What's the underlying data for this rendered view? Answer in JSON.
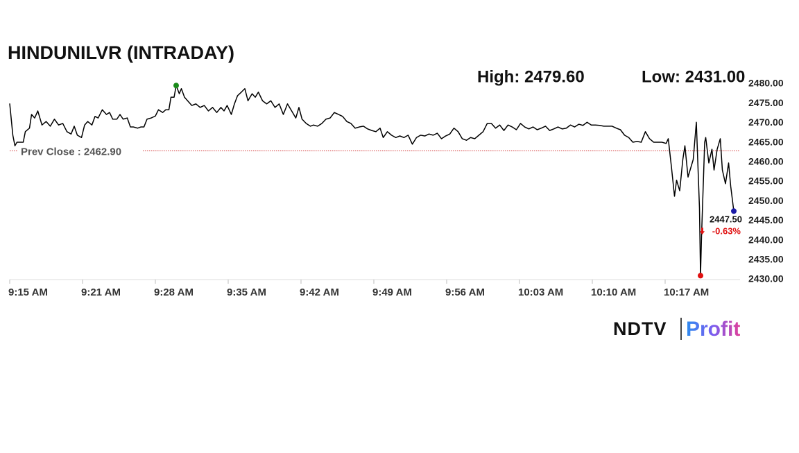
{
  "chart_data": {
    "type": "line",
    "title": "HINDUNILVR (INTRADAY)",
    "x": [
      15.0,
      15.3,
      15.5,
      15.7,
      16.3,
      16.5,
      16.9,
      17.1,
      17.4,
      17.7,
      18.1,
      18.5,
      18.9,
      19.3,
      19.7,
      20.1,
      20.5,
      20.9,
      21.2,
      21.5,
      21.9,
      22.2,
      22.5,
      22.9,
      23.2,
      23.5,
      23.9,
      24.3,
      24.6,
      24.9,
      25.3,
      25.6,
      25.9,
      26.3,
      26.6,
      26.9,
      27.3,
      27.6,
      27.9,
      28.2,
      28.6,
      29.0,
      29.3,
      29.7,
      30.0,
      30.3,
      30.5,
      30.8,
      31.0,
      31.3,
      31.5,
      31.8,
      32.1,
      32.5,
      32.9,
      33.3,
      33.7,
      34.1,
      34.5,
      34.9,
      35.3,
      35.6,
      35.9,
      36.3,
      36.6,
      36.9,
      37.3,
      37.6,
      37.9,
      38.3,
      38.6,
      38.9,
      39.3,
      39.7,
      40.1,
      40.5,
      40.9,
      41.3,
      41.7,
      42.1,
      42.5,
      42.8,
      43.1,
      43.5,
      43.9,
      44.2,
      44.6,
      45.0,
      45.4,
      45.8,
      46.2,
      46.6,
      47.0,
      47.4,
      47.8,
      48.2,
      48.6,
      49.0,
      49.4,
      49.8,
      50.2,
      50.6,
      50.9,
      51.3,
      51.7,
      52.1,
      52.5,
      52.9,
      53.3,
      53.7,
      54.1,
      54.5,
      54.9,
      55.3,
      55.7,
      56.1,
      56.5,
      56.9,
      57.3,
      57.7,
      58.1,
      58.5,
      58.9,
      59.3,
      59.7,
      60.1,
      60.5,
      60.9,
      61.3,
      61.7,
      62.1,
      62.5,
      62.9,
      63.3,
      63.7,
      64.1,
      64.5,
      64.9,
      65.3,
      65.7,
      66.1,
      66.5,
      66.9,
      67.3,
      67.7,
      68.1,
      68.5,
      68.9,
      69.3,
      69.7,
      70.1,
      70.5,
      70.9,
      71.3,
      71.7,
      72.1,
      72.5,
      72.9,
      73.3,
      73.7,
      74.1,
      74.5,
      74.9,
      75.3,
      75.7,
      76.1,
      76.5,
      76.9,
      77.3,
      77.7,
      78.1,
      78.3,
      78.6,
      78.9,
      79.1,
      79.4,
      79.7,
      79.9,
      80.2,
      80.5,
      80.7,
      81.0,
      81.3,
      81.4,
      81.5,
      81.8,
      81.9,
      82.2,
      82.5,
      82.7,
      83.0,
      83.3,
      83.5,
      83.8,
      84.1,
      84.3,
      84.6
    ],
    "values": [
      2475.0,
      2466.9,
      2464.2,
      2465.1,
      2465.1,
      2467.8,
      2468.7,
      2472.2,
      2471.3,
      2473.1,
      2469.5,
      2470.4,
      2469.2,
      2471.0,
      2469.5,
      2469.9,
      2467.8,
      2467.2,
      2469.2,
      2466.9,
      2466.3,
      2469.5,
      2470.4,
      2469.5,
      2471.7,
      2471.3,
      2473.4,
      2472.2,
      2472.7,
      2471.0,
      2471.0,
      2472.2,
      2471.0,
      2471.3,
      2469.0,
      2469.0,
      2468.7,
      2469.0,
      2469.0,
      2471.0,
      2471.3,
      2471.8,
      2473.4,
      2472.7,
      2473.4,
      2473.4,
      2476.6,
      2476.6,
      2479.6,
      2477.5,
      2478.8,
      2476.6,
      2475.7,
      2474.5,
      2474.9,
      2474.0,
      2474.5,
      2473.1,
      2474.0,
      2472.7,
      2474.0,
      2473.1,
      2474.5,
      2472.2,
      2474.9,
      2477.0,
      2478.0,
      2478.8,
      2475.7,
      2477.5,
      2476.6,
      2477.9,
      2475.7,
      2474.9,
      2475.7,
      2474.0,
      2474.9,
      2472.2,
      2474.9,
      2473.1,
      2471.3,
      2474.0,
      2471.0,
      2469.9,
      2469.2,
      2469.5,
      2469.2,
      2469.9,
      2471.0,
      2471.3,
      2472.7,
      2472.2,
      2471.7,
      2470.4,
      2469.9,
      2468.7,
      2469.0,
      2469.2,
      2468.5,
      2468.1,
      2467.8,
      2468.7,
      2466.3,
      2467.8,
      2466.9,
      2466.3,
      2466.7,
      2466.3,
      2466.9,
      2464.6,
      2466.3,
      2466.9,
      2466.7,
      2467.2,
      2466.9,
      2467.4,
      2466.0,
      2466.7,
      2467.2,
      2468.7,
      2467.8,
      2466.0,
      2465.6,
      2466.3,
      2466.0,
      2466.9,
      2467.8,
      2469.9,
      2469.9,
      2468.7,
      2469.5,
      2468.1,
      2469.5,
      2469.0,
      2468.3,
      2469.9,
      2469.0,
      2468.5,
      2469.0,
      2468.3,
      2468.7,
      2469.2,
      2468.1,
      2468.5,
      2469.0,
      2468.5,
      2468.7,
      2469.5,
      2469.0,
      2469.7,
      2469.4,
      2470.2,
      2469.5,
      2469.5,
      2469.4,
      2469.2,
      2469.2,
      2469.2,
      2468.7,
      2468.3,
      2466.9,
      2466.3,
      2465.1,
      2465.3,
      2465.1,
      2467.8,
      2466.0,
      2465.1,
      2465.1,
      2465.1,
      2464.8,
      2466.0,
      2458.9,
      2451.3,
      2455.4,
      2452.7,
      2460.7,
      2464.2,
      2456.2,
      2458.9,
      2460.7,
      2470.2,
      2448.3,
      2431.0,
      2441.2,
      2465.1,
      2466.3,
      2459.8,
      2463.3,
      2458.0,
      2463.3,
      2466.0,
      2458.0,
      2454.5,
      2459.8,
      2453.9,
      2447.5
    ],
    "color": "#000000",
    "xlim": [
      15,
      85.2
    ],
    "xticks": [
      {
        "value": 15,
        "label": "9:15 AM"
      },
      {
        "value": 22,
        "label": "9:21 AM"
      },
      {
        "value": 29,
        "label": "9:28 AM"
      },
      {
        "value": 36,
        "label": "9:35 AM"
      },
      {
        "value": 43,
        "label": "9:42 AM"
      },
      {
        "value": 50,
        "label": "9:49 AM"
      },
      {
        "value": 57,
        "label": "9:56 AM"
      },
      {
        "value": 64,
        "label": "10:03 AM"
      },
      {
        "value": 71,
        "label": "10:10 AM"
      },
      {
        "value": 78,
        "label": "10:17 AM"
      }
    ],
    "ylim": [
      2430,
      2480
    ],
    "yticks": [
      {
        "value": 2430,
        "label": "2430.00"
      },
      {
        "value": 2435,
        "label": "2435.00"
      },
      {
        "value": 2440,
        "label": "2440.00"
      },
      {
        "value": 2445,
        "label": "2445.00"
      },
      {
        "value": 2450,
        "label": "2450.00"
      },
      {
        "value": 2455,
        "label": "2455.00"
      },
      {
        "value": 2460,
        "label": "2460.00"
      },
      {
        "value": 2465,
        "label": "2465.00"
      },
      {
        "value": 2470,
        "label": "2470.00"
      },
      {
        "value": 2475,
        "label": "2475.00"
      },
      {
        "value": 2480,
        "label": "2480.00"
      }
    ],
    "high": {
      "label": "High: 2479.60",
      "value": 2479.6,
      "x": 31.0,
      "color": "#1a8a1a"
    },
    "low": {
      "label": "Low: 2431.00",
      "value": 2431.0,
      "x": 81.4,
      "color": "#e01010"
    },
    "prev_close": {
      "label": "Prev Close : 2462.90",
      "value": 2462.9,
      "color": "#d03030"
    },
    "last_price": {
      "label": "2447.50",
      "value": 2447.5,
      "x": 84.6,
      "color": "#1a1aa6"
    },
    "change": {
      "label": "-0.63%",
      "value": -0.63,
      "color": "#e01010"
    },
    "logo": {
      "brand": "NDTV",
      "product": "Profit"
    }
  }
}
